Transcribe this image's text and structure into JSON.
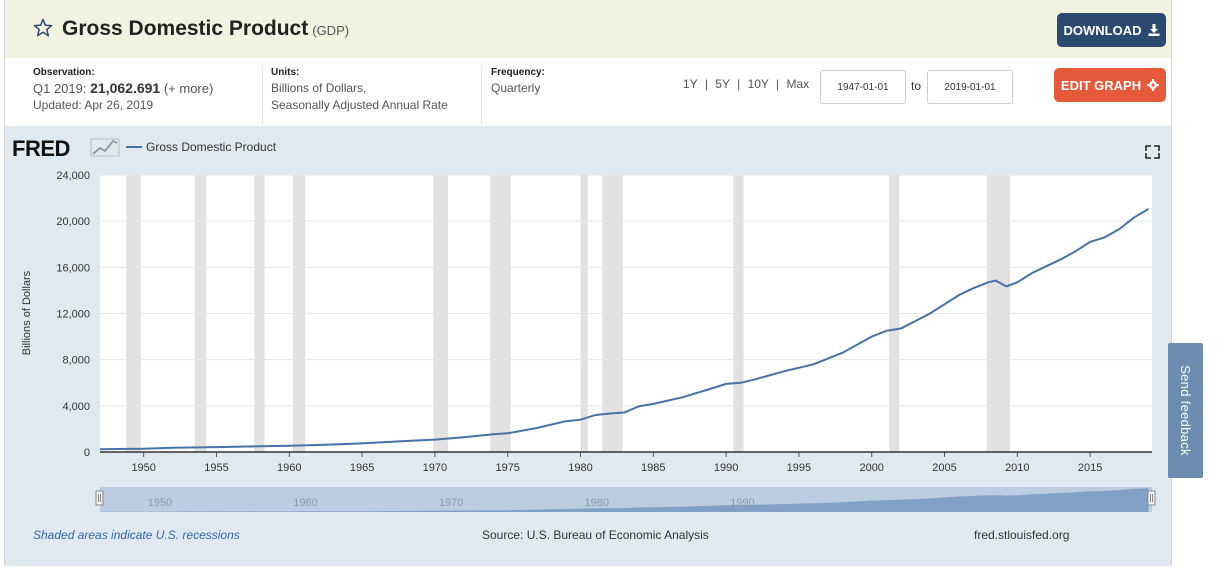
{
  "header": {
    "title": "Gross Domestic Product",
    "code": "(GDP)",
    "download_label": "DOWNLOAD"
  },
  "info": {
    "observation_label": "Observation:",
    "observation_period": "Q1 2019:",
    "observation_value": "21,062.691",
    "observation_more": "(+ more)",
    "updated": "Updated: Apr 26, 2019",
    "units_label": "Units:",
    "units_line1": "Billions of Dollars,",
    "units_line2": "Seasonally Adjusted Annual Rate",
    "frequency_label": "Frequency:",
    "frequency_value": "Quarterly"
  },
  "controls": {
    "range_1y": "1Y",
    "range_5y": "5Y",
    "range_10y": "10Y",
    "range_max": "Max",
    "separator": "|",
    "start_date": "1947-01-01",
    "to_label": "to",
    "end_date": "2019-01-01",
    "edit_label": "EDIT GRAPH"
  },
  "footer": {
    "recession_note": "Shaded areas indicate U.S. recessions",
    "source": "Source: U.S. Bureau of Economic Analysis",
    "site": "fred.stlouisfed.org"
  },
  "feedback_label": "Send feedback",
  "logo_text": "FRED",
  "colors": {
    "line": "#4572a7",
    "recession": "#e1e1e1",
    "download_btn": "#2c4a70",
    "edit_btn": "#e7593b",
    "panel": "#e1e9f0"
  },
  "chart_data": {
    "type": "line",
    "title": "Gross Domestic Product",
    "legend": [
      "Gross Domestic Product"
    ],
    "ylabel": "Billions of Dollars",
    "xlabel": "",
    "ylim": [
      0,
      24000
    ],
    "xlim": [
      1947.0,
      2019.25
    ],
    "yticks": [
      0,
      4000,
      8000,
      12000,
      16000,
      20000,
      24000
    ],
    "ytick_labels": [
      "0",
      "4,000",
      "8,000",
      "12,000",
      "16,000",
      "20,000",
      "24,000"
    ],
    "xticks": [
      1950,
      1955,
      1960,
      1965,
      1970,
      1975,
      1980,
      1985,
      1990,
      1995,
      2000,
      2005,
      2010,
      2015
    ],
    "navigator_ticks": [
      1950,
      1960,
      1970,
      1980,
      1990
    ],
    "recessions": [
      [
        1948.8,
        1949.8
      ],
      [
        1953.5,
        1954.3
      ],
      [
        1957.6,
        1958.3
      ],
      [
        1960.25,
        1961.1
      ],
      [
        1969.9,
        1970.9
      ],
      [
        1973.8,
        1975.2
      ],
      [
        1980.0,
        1980.5
      ],
      [
        1981.5,
        1982.9
      ],
      [
        1990.5,
        1991.2
      ],
      [
        2001.2,
        2001.9
      ],
      [
        2007.9,
        2009.5
      ]
    ],
    "series": [
      {
        "name": "Gross Domestic Product",
        "x": [
          1947,
          1949,
          1950,
          1952,
          1955,
          1958,
          1960,
          1962,
          1965,
          1968,
          1970,
          1972,
          1974,
          1975,
          1977,
          1979,
          1980,
          1981,
          1982,
          1983,
          1984,
          1985,
          1987,
          1989,
          1990,
          1991,
          1992,
          1994,
          1996,
          1998,
          2000,
          2001,
          2002,
          2004,
          2006,
          2007,
          2008.0,
          2008.5,
          2009.25,
          2010,
          2011,
          2012,
          2013,
          2014,
          2015,
          2016,
          2017,
          2018,
          2019
        ],
        "values": [
          243,
          272,
          282,
          362,
          426,
          490,
          543,
          604,
          743,
          950,
          1073,
          1280,
          1546,
          1621,
          2082,
          2670,
          2800,
          3200,
          3340,
          3420,
          3950,
          4170,
          4736,
          5500,
          5900,
          6000,
          6300,
          7000,
          7600,
          8600,
          10000,
          10500,
          10700,
          12000,
          13600,
          14200,
          14700,
          14850,
          14350,
          14700,
          15500,
          16100,
          16700,
          17400,
          18200,
          18600,
          19300,
          20300,
          21063
        ]
      }
    ]
  }
}
